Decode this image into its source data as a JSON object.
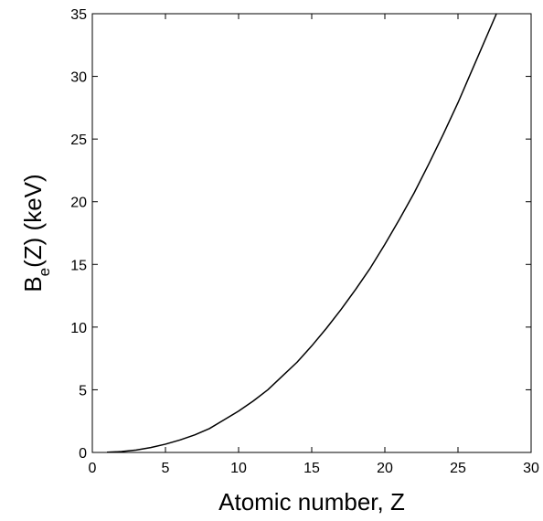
{
  "chart_data": {
    "type": "line",
    "xlabel": "Atomic number, Z",
    "ylabel": {
      "main": "B",
      "subscript": "e",
      "rest": "(Z) (keV)"
    },
    "xlim": [
      0,
      30
    ],
    "ylim": [
      0,
      35
    ],
    "x_ticks": [
      0,
      5,
      10,
      15,
      20,
      25,
      30
    ],
    "y_ticks": [
      0,
      5,
      10,
      15,
      20,
      25,
      30,
      35
    ],
    "grid": false,
    "legend": "none",
    "line_color": "#000000",
    "series": [
      {
        "x": [
          1,
          2,
          3,
          4,
          5,
          6,
          7,
          8,
          9,
          10,
          11,
          12,
          13,
          14,
          15,
          16,
          17,
          18,
          19,
          20,
          21,
          22,
          23,
          24,
          25,
          26
        ],
        "values": [
          0.014,
          0.07,
          0.19,
          0.39,
          0.66,
          1.0,
          1.4,
          1.9,
          2.6,
          3.3,
          4.1,
          5.0,
          6.1,
          7.2,
          8.5,
          9.9,
          11.4,
          13.0,
          14.7,
          16.6,
          18.6,
          20.7,
          23.0,
          25.4,
          27.9,
          30.6
        ]
      }
    ]
  }
}
